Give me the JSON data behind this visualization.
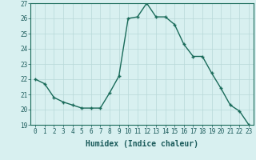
{
  "x": [
    0,
    1,
    2,
    3,
    4,
    5,
    6,
    7,
    8,
    9,
    10,
    11,
    12,
    13,
    14,
    15,
    16,
    17,
    18,
    19,
    20,
    21,
    22,
    23
  ],
  "y": [
    22.0,
    21.7,
    20.8,
    20.5,
    20.3,
    20.1,
    20.1,
    20.1,
    21.1,
    22.2,
    26.0,
    26.1,
    27.0,
    26.1,
    26.1,
    25.6,
    24.3,
    23.5,
    23.5,
    22.4,
    21.4,
    20.3,
    19.9,
    19.0
  ],
  "xlabel": "Humidex (Indice chaleur)",
  "ylim": [
    19,
    27
  ],
  "yticks": [
    19,
    20,
    21,
    22,
    23,
    24,
    25,
    26,
    27
  ],
  "xticks": [
    0,
    1,
    2,
    3,
    4,
    5,
    6,
    7,
    8,
    9,
    10,
    11,
    12,
    13,
    14,
    15,
    16,
    17,
    18,
    19,
    20,
    21,
    22,
    23
  ],
  "line_color": "#1a6b5a",
  "marker": "+",
  "marker_size": 3,
  "bg_color": "#d8f0f0",
  "grid_color": "#b8d8d8",
  "tick_label_fontsize": 5.5,
  "xlabel_fontsize": 7,
  "line_width": 1.0
}
